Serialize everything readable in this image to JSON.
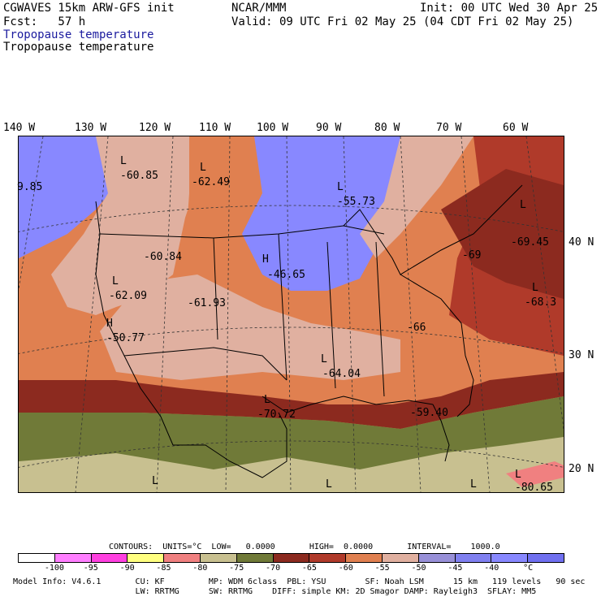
{
  "header": {
    "title": "CGWAVES 15km ARW-GFS init",
    "fcst": "Fcst:   57 h",
    "center": "NCAR/MMM",
    "init": "Init: 00 UTC Wed 30 Apr 25",
    "valid": "Valid: 09 UTC Fri 02 May 25 (04 CDT Fri 02 May 25)",
    "field1": "Tropopause temperature",
    "field2": "Tropopause temperature"
  },
  "map": {
    "lon_labels": [
      "140 W",
      "130 W",
      "120 W",
      "110 W",
      "100 W",
      "90 W",
      "80 W",
      "70 W",
      "60 W"
    ],
    "lat_labels": [
      "40 N",
      "30 N",
      "20 N"
    ],
    "annotations": [
      {
        "kind": "L",
        "text": "-60.85"
      },
      {
        "kind": "L",
        "text": "-62.49"
      },
      {
        "kind": "L",
        "text": "-55.73"
      },
      {
        "kind": "",
        "text": "9.85"
      },
      {
        "kind": "",
        "text": "-60.84"
      },
      {
        "kind": "H",
        "text": "-46.65"
      },
      {
        "kind": "L",
        "text": "-69.45"
      },
      {
        "kind": "",
        "text": "-69"
      },
      {
        "kind": "L",
        "text": "-62.09"
      },
      {
        "kind": "",
        "text": "-61.93"
      },
      {
        "kind": "L",
        "text": "-68.3"
      },
      {
        "kind": "H",
        "text": "-50.77"
      },
      {
        "kind": "",
        "text": "-66"
      },
      {
        "kind": "L",
        "text": "-64.04"
      },
      {
        "kind": "L",
        "text": "-70.72"
      },
      {
        "kind": "",
        "text": "-59.40"
      },
      {
        "kind": "L",
        "text": "-80.65"
      }
    ],
    "extra_L": [
      "L",
      "L",
      "L"
    ]
  },
  "contours_line": "CONTOURS:  UNITS=°C  LOW=   0.0000       HIGH=  0.0000       INTERVAL=    1000.0",
  "colorbar": {
    "colors": [
      "#ffffff",
      "#ff7eff",
      "#ff40e0",
      "#ffff80",
      "#f08080",
      "#c8c090",
      "#707a38",
      "#8c2a1f",
      "#b03a2a",
      "#e08050",
      "#e0b0a0",
      "#9890d8",
      "#8080f0",
      "#8888ff",
      "#7070f0"
    ],
    "labels": [
      "-100",
      "-95",
      "-90",
      "-85",
      "-80",
      "-75",
      "-70",
      "-65",
      "-60",
      "-55",
      "-50",
      "-45",
      "-40",
      "°C"
    ]
  },
  "footer": {
    "line1": "  Model Info: V4.6.1       CU: KF         MP: WDM 6class  PBL: YSU        SF: Noah LSM      15 km   119 levels   90 sec",
    "line2": "                           LW: RRTMG      SW: RRTMG    DIFF: simple KM: 2D Smagor DAMP: Rayleigh3  SFLAY: MM5"
  }
}
